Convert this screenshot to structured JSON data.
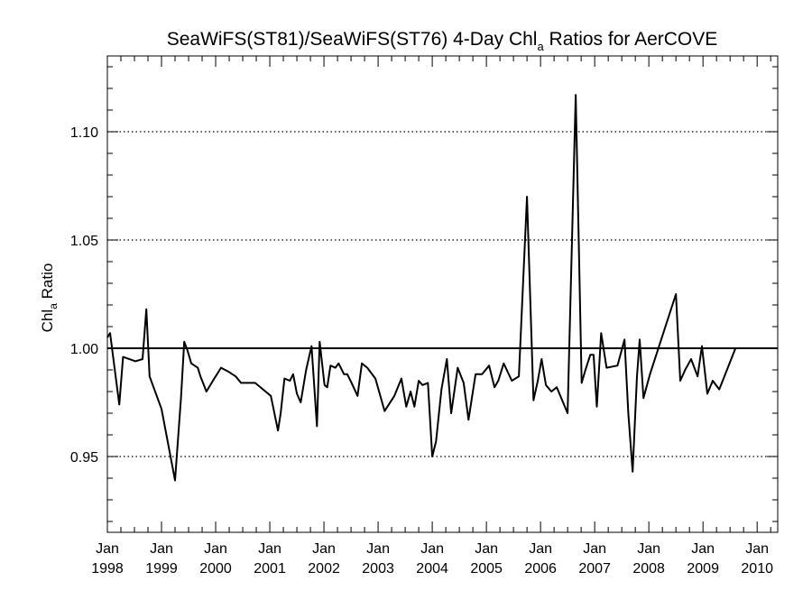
{
  "chart_data": {
    "type": "line",
    "title": {
      "main": "SeaWiFS(ST81)/SeaWiFS(ST76) 4-Day Chl",
      "sub": "a",
      "rest": " Ratios for AerCOVE"
    },
    "ylabel": {
      "main": "Chl",
      "sub": "a",
      "rest": " Ratio"
    },
    "xlabel": "",
    "xlim": [
      1998.0,
      2010.38
    ],
    "ylim": [
      0.915,
      1.135
    ],
    "yticks": [
      {
        "value": 0.95,
        "label": "0.95"
      },
      {
        "value": 1.0,
        "label": "1.00"
      },
      {
        "value": 1.05,
        "label": "1.05"
      },
      {
        "value": 1.1,
        "label": "1.10"
      }
    ],
    "xticks": [
      {
        "value": 1998,
        "month": "Jan",
        "year": "1998"
      },
      {
        "value": 1999,
        "month": "Jan",
        "year": "1999"
      },
      {
        "value": 2000,
        "month": "Jan",
        "year": "2000"
      },
      {
        "value": 2001,
        "month": "Jan",
        "year": "2001"
      },
      {
        "value": 2002,
        "month": "Jan",
        "year": "2002"
      },
      {
        "value": 2003,
        "month": "Jan",
        "year": "2003"
      },
      {
        "value": 2004,
        "month": "Jan",
        "year": "2004"
      },
      {
        "value": 2005,
        "month": "Jan",
        "year": "2005"
      },
      {
        "value": 2006,
        "month": "Jan",
        "year": "2006"
      },
      {
        "value": 2007,
        "month": "Jan",
        "year": "2007"
      },
      {
        "value": 2008,
        "month": "Jan",
        "year": "2008"
      },
      {
        "value": 2009,
        "month": "Jan",
        "year": "2009"
      },
      {
        "value": 2010,
        "month": "Jan",
        "year": "2010"
      }
    ],
    "reference_line": {
      "y": 1.0,
      "style": "solid"
    },
    "gridlines": {
      "y": [
        0.95,
        1.05,
        1.1
      ],
      "style": "dotted"
    },
    "series": [
      {
        "color": "#000000",
        "x": [
          1998.0,
          1998.05,
          1998.22,
          1998.29,
          1998.52,
          1998.65,
          1998.72,
          1998.78,
          1999.0,
          1999.25,
          1999.36,
          1999.42,
          1999.48,
          1999.55,
          1999.67,
          1999.72,
          1999.83,
          1999.95,
          2000.1,
          2000.25,
          2000.37,
          2000.47,
          2000.62,
          2000.73,
          2001.02,
          2001.15,
          2001.2,
          2001.27,
          2001.37,
          2001.43,
          2001.5,
          2001.57,
          2001.67,
          2001.77,
          2001.87,
          2001.92,
          2002.01,
          2002.06,
          2002.12,
          2002.21,
          2002.27,
          2002.37,
          2002.43,
          2002.51,
          2002.62,
          2002.7,
          2002.8,
          2002.95,
          2003.12,
          2003.3,
          2003.43,
          2003.52,
          2003.6,
          2003.67,
          2003.75,
          2003.82,
          2003.92,
          2004.0,
          2004.07,
          2004.17,
          2004.27,
          2004.35,
          2004.47,
          2004.58,
          2004.67,
          2004.8,
          2004.92,
          2005.05,
          2005.15,
          2005.22,
          2005.32,
          2005.47,
          2005.6,
          2005.75,
          2005.87,
          2005.95,
          2006.02,
          2006.1,
          2006.2,
          2006.3,
          2006.5,
          2006.65,
          2006.76,
          2006.83,
          2006.92,
          2006.98,
          2007.04,
          2007.12,
          2007.22,
          2007.42,
          2007.55,
          2007.62,
          2007.7,
          2007.78,
          2007.83,
          2007.9,
          2008.02,
          2008.5,
          2008.58,
          2008.67,
          2008.78,
          2008.9,
          2008.98,
          2009.08,
          2009.18,
          2009.3,
          2009.6,
          2009.9,
          2010.0,
          2010.07,
          2010.1,
          2010.2,
          2010.28,
          2010.35
        ],
        "y": [
          1.005,
          1.007,
          0.974,
          0.996,
          0.994,
          0.995,
          1.018,
          0.987,
          0.972,
          0.939,
          0.977,
          1.003,
          0.999,
          0.993,
          0.991,
          0.987,
          0.98,
          0.985,
          0.991,
          0.989,
          0.987,
          0.984,
          0.984,
          0.984,
          0.978,
          0.962,
          0.97,
          0.986,
          0.985,
          0.988,
          0.979,
          0.975,
          0.99,
          1.001,
          0.964,
          1.003,
          0.983,
          0.982,
          0.992,
          0.991,
          0.993,
          0.988,
          0.988,
          0.984,
          0.978,
          0.993,
          0.991,
          0.986,
          0.971,
          0.978,
          0.986,
          0.973,
          0.98,
          0.973,
          0.985,
          0.983,
          0.984,
          0.95,
          0.957,
          0.981,
          0.995,
          0.97,
          0.991,
          0.984,
          0.967,
          0.988,
          0.988,
          0.992,
          0.982,
          0.985,
          0.993,
          0.985,
          0.987,
          1.07,
          0.976,
          0.985,
          0.995,
          0.983,
          0.98,
          0.982,
          0.97,
          1.117,
          0.984,
          0.99,
          0.997,
          0.997,
          0.973,
          1.007,
          0.991,
          0.992,
          1.004,
          0.97,
          0.943,
          0.987,
          1.004,
          0.977,
          0.988,
          1.025,
          0.985,
          0.99,
          0.995,
          0.987,
          1.001,
          0.979,
          0.985,
          0.981,
          1.0,
          1.0,
          1.0,
          1.0,
          1.0,
          1.0,
          1.0,
          1.0
        ]
      }
    ]
  }
}
